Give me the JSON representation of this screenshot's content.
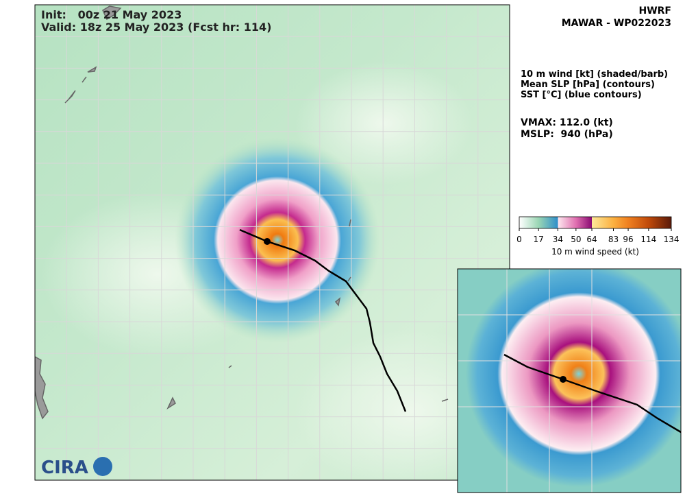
{
  "header": {
    "model": "HWRF",
    "storm": "MAWAR - WP022023",
    "init": "Init:   00z 21 May 2023",
    "valid": "Valid: 18z 25 May 2023 (Fcst hr: 114)"
  },
  "legend": {
    "lines": [
      "10 m wind [kt] (shaded/barb)",
      "Mean SLP [hPa] (contours)",
      "SST [°C] (blue contours)"
    ]
  },
  "stats": {
    "vmax": "VMAX: 112.0 (kt)",
    "mslp": "MSLP:  940 (hPa)"
  },
  "colorbar": {
    "label": "10 m wind speed (kt)",
    "lim": [
      0,
      134
    ],
    "ticks": [
      0,
      17,
      34,
      50,
      64,
      83,
      96,
      114,
      134
    ],
    "tick_colors": [
      "#ffffff",
      "#9ad6b4",
      [
        "#2f8fc9",
        "#fde8ee"
      ],
      "#e070b0",
      [
        "#8a0a72",
        "#fde89a"
      ],
      "#fbb040",
      "#f08020",
      "#c04a0a",
      "#5a1a0a"
    ]
  },
  "logo": "CIRA"
}
